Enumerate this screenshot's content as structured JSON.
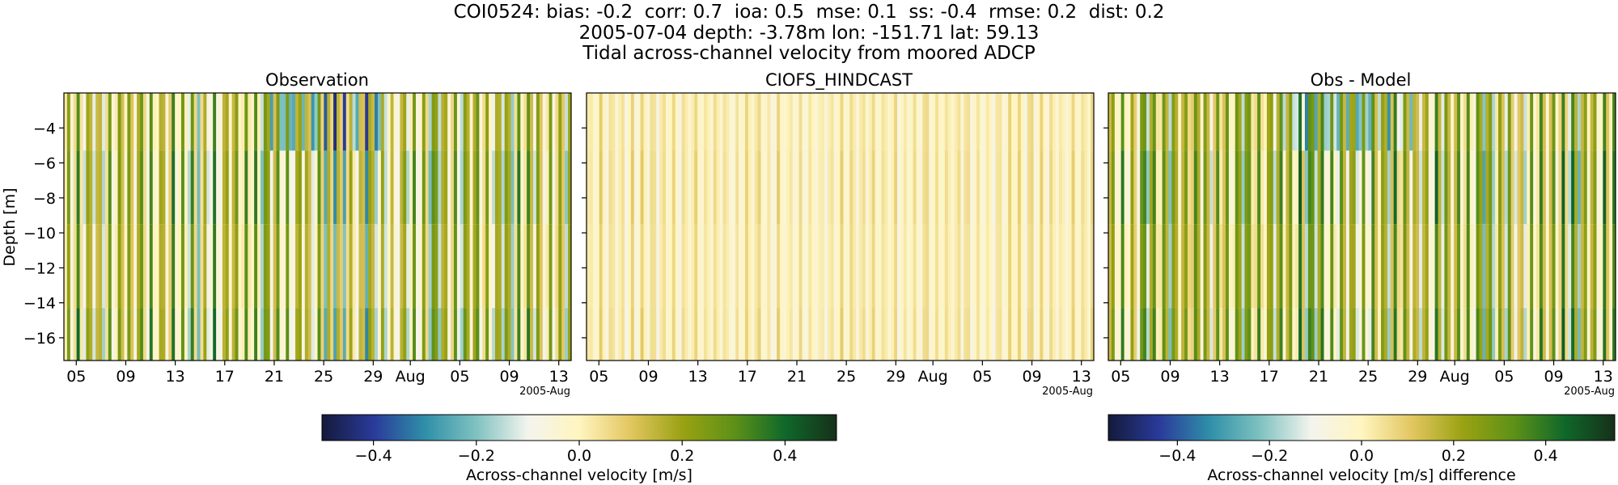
{
  "figure": {
    "title_line1": "COI0524: bias: -0.2  corr: 0.7  ioa: 0.5  mse: 0.1  ss: -0.4  rmse: 0.2  dist: 0.2",
    "title_line2": "2005-07-04 depth: -3.78m lon: -151.71 lat: 59.13",
    "title_line3": "Tidal across-channel velocity from moored ADCP"
  },
  "chart_data": [
    {
      "type": "heatmap",
      "title": "Observation",
      "ylabel": "Depth [m]",
      "x_tick_labels": [
        "05",
        "09",
        "13",
        "17",
        "21",
        "25",
        "29",
        "Aug",
        "05",
        "09",
        "13"
      ],
      "x_offset_label": "2005-Aug",
      "x_range": [
        "2005-07-04",
        "2005-08-14"
      ],
      "y_ticks": [
        -4,
        -6,
        -8,
        -10,
        -12,
        -14,
        -16
      ],
      "ylim": [
        -17.3,
        -2.0
      ],
      "colormap": "diverging blue-white-yellow-green",
      "value_range": [
        -0.5,
        0.5
      ],
      "colorbar_ref": 0
    },
    {
      "type": "heatmap",
      "title": "CIOFS_HINDCAST",
      "x_tick_labels": [
        "05",
        "09",
        "13",
        "17",
        "21",
        "25",
        "29",
        "Aug",
        "05",
        "09",
        "13"
      ],
      "x_offset_label": "2005-Aug",
      "x_range": [
        "2005-07-04",
        "2005-08-14"
      ],
      "ylim": [
        -17.3,
        -2.0
      ],
      "colormap": "diverging blue-white-yellow-green",
      "value_range": [
        -0.5,
        0.5
      ],
      "colorbar_ref": 0
    },
    {
      "type": "heatmap",
      "title": "Obs - Model",
      "x_tick_labels": [
        "05",
        "09",
        "13",
        "17",
        "21",
        "25",
        "29",
        "Aug",
        "05",
        "09",
        "13"
      ],
      "x_offset_label": "2005-Aug",
      "x_range": [
        "2005-07-04",
        "2005-08-14"
      ],
      "ylim": [
        -17.3,
        -2.0
      ],
      "colormap": "diverging blue-white-yellow-green",
      "value_range": [
        -0.55,
        0.55
      ],
      "colorbar_ref": 1
    }
  ],
  "colorbars": [
    {
      "label": "Across-channel velocity [m/s]",
      "ticks": [
        -0.4,
        -0.2,
        0.0,
        0.2,
        0.4
      ],
      "tick_labels": [
        "−0.4",
        "−0.2",
        "0.0",
        "0.2",
        "0.4"
      ],
      "range": [
        -0.5,
        0.5
      ]
    },
    {
      "label": "Across-channel velocity [m/s] difference",
      "ticks": [
        -0.4,
        -0.2,
        0.0,
        0.2,
        0.4
      ],
      "tick_labels": [
        "−0.4",
        "−0.2",
        "0.0",
        "0.2",
        "0.4"
      ],
      "range": [
        -0.55,
        0.55
      ]
    }
  ],
  "colors": {
    "cmap_stops": [
      "#141a3a",
      "#2a3a9a",
      "#2f8fa8",
      "#7fc2c0",
      "#f4f4ee",
      "#fff5c0",
      "#e2c660",
      "#9aa212",
      "#5e9118",
      "#10682a",
      "#16301a"
    ]
  }
}
